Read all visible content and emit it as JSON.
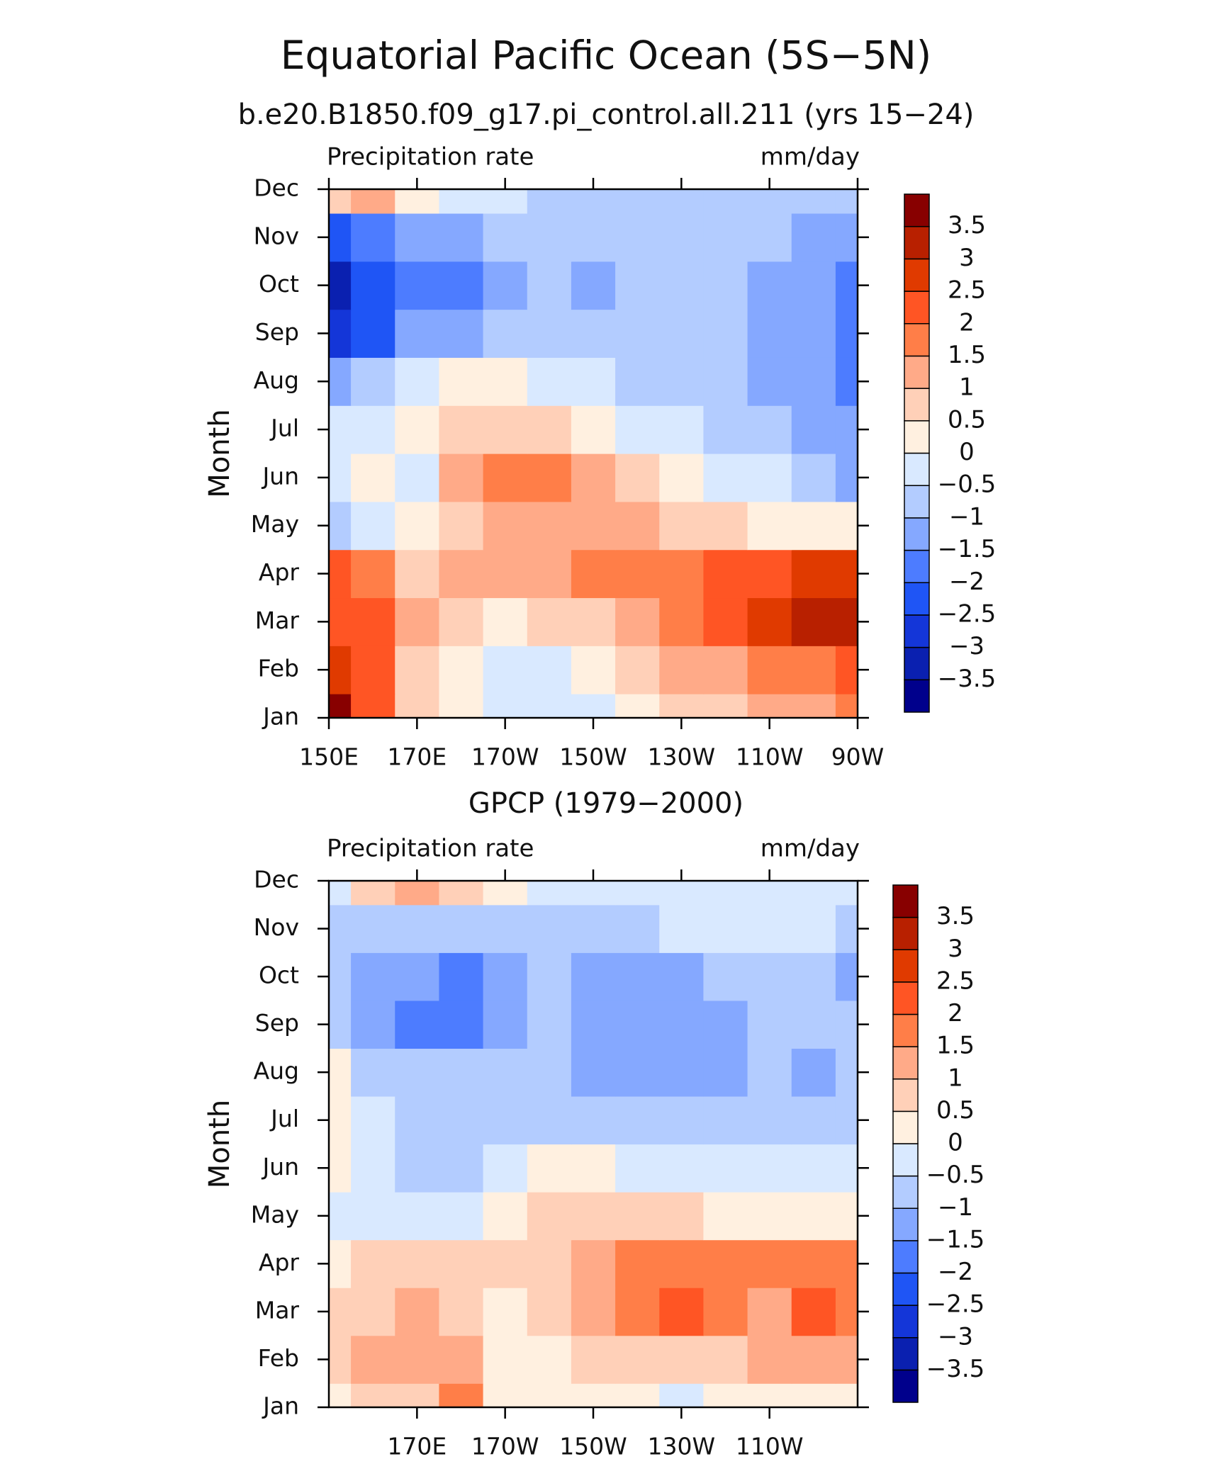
{
  "chart_data": [
    {
      "type": "contour",
      "title": "Equatorial Pacific Ocean (5S−5N)",
      "subtitle": "b.e20.B1850.f09_g17.pi_control.all.211 (yrs 15−24)",
      "left_label": "Precipitation rate",
      "right_label": "mm/day",
      "ylabel": "Month",
      "x": [
        150,
        160,
        170,
        180,
        190,
        200,
        210,
        220,
        230,
        240,
        250,
        260,
        270
      ],
      "y": [
        "Jan",
        "Feb",
        "Mar",
        "Apr",
        "May",
        "Jun",
        "Jul",
        "Aug",
        "Sep",
        "Oct",
        "Nov",
        "Dec"
      ],
      "xlim": [
        150,
        270
      ],
      "xticks": [
        {
          "value": 150,
          "label": "150E"
        },
        {
          "value": 170,
          "label": "170E"
        },
        {
          "value": 190,
          "label": "170W"
        },
        {
          "value": 210,
          "label": "150W"
        },
        {
          "value": 230,
          "label": "130W"
        },
        {
          "value": 250,
          "label": "110W"
        },
        {
          "value": 270,
          "label": "90W"
        }
      ],
      "z": [
        [
          3.5,
          2,
          0.5,
          0,
          -0.3,
          -0.3,
          -0.2,
          0.2,
          0.5,
          0.8,
          1,
          1.2,
          1.5
        ],
        [
          2.5,
          2,
          0.8,
          0.3,
          -0.2,
          -0.3,
          0.2,
          0.6,
          1,
          1.3,
          1.6,
          1.8,
          2.2
        ],
        [
          2.2,
          2.3,
          1,
          0.7,
          0.3,
          0.5,
          0.8,
          1.2,
          1.6,
          2.2,
          2.7,
          3,
          3.3
        ],
        [
          2,
          1.5,
          0.8,
          1,
          1,
          1.2,
          1.7,
          1.8,
          1.8,
          2,
          2.2,
          2.5,
          2.6
        ],
        [
          -0.7,
          -0.3,
          0,
          0.8,
          1,
          1.2,
          1.1,
          1,
          0.8,
          0.6,
          0.4,
          0.3,
          0.2
        ],
        [
          -0.3,
          0.2,
          -0.2,
          1,
          1.6,
          1.7,
          1.3,
          0.8,
          0.3,
          -0.2,
          -0.5,
          -0.8,
          -1.2
        ],
        [
          -0.3,
          -0.2,
          0.3,
          0.7,
          0.8,
          0.8,
          0.4,
          -0.1,
          -0.4,
          -0.6,
          -0.8,
          -1.1,
          -1.3
        ],
        [
          -1.5,
          -1,
          -0.5,
          0,
          0,
          -0.2,
          -0.5,
          -0.8,
          -1,
          -1,
          -1.1,
          -1.2,
          -1.6
        ],
        [
          -2.8,
          -2.3,
          -1.5,
          -1.1,
          -0.9,
          -0.8,
          -0.9,
          -0.9,
          -0.9,
          -1,
          -1.2,
          -1.3,
          -2
        ],
        [
          -3.3,
          -2.5,
          -2,
          -1.6,
          -1.2,
          -1,
          -1.1,
          -0.9,
          -0.9,
          -0.9,
          -1.2,
          -1.3,
          -2
        ],
        [
          -2.3,
          -2,
          -1.3,
          -1.1,
          -1,
          -0.8,
          -0.7,
          -0.7,
          -0.7,
          -0.7,
          -0.8,
          -1.2,
          -1.4
        ],
        [
          0.5,
          1,
          0.3,
          -0.3,
          -0.5,
          -0.6,
          -0.6,
          -0.6,
          -0.6,
          -0.6,
          -0.6,
          -0.6,
          -0.6
        ]
      ],
      "levels": [
        {
          "value": -3.5,
          "label": "−3.5"
        },
        {
          "value": -3,
          "label": "−3"
        },
        {
          "value": -2.5,
          "label": "−2.5"
        },
        {
          "value": -2,
          "label": "−2"
        },
        {
          "value": -1.5,
          "label": "−1.5"
        },
        {
          "value": -1,
          "label": "−1"
        },
        {
          "value": -0.5,
          "label": "−0.5"
        },
        0,
        0.5,
        1,
        1.5,
        2,
        2.5,
        3,
        3.5
      ],
      "colors": [
        "#00008c",
        "#0a20b0",
        "#1436d8",
        "#1f55f5",
        "#4d7cff",
        "#85a8ff",
        "#b3ccff",
        "#d9e9ff",
        "#fff0e0",
        "#ffd0b8",
        "#ffaa88",
        "#ff7e48",
        "#ff5524",
        "#e03a00",
        "#b82000",
        "#880000"
      ]
    },
    {
      "type": "contour",
      "subtitle": "GPCP (1979−2000)",
      "left_label": "Precipitation rate",
      "right_label": "mm/day",
      "ylabel": "Month",
      "x": [
        150,
        160,
        170,
        180,
        190,
        200,
        210,
        220,
        230,
        240,
        250,
        260,
        270
      ],
      "y": [
        "Jan",
        "Feb",
        "Mar",
        "Apr",
        "May",
        "Jun",
        "Jul",
        "Aug",
        "Sep",
        "Oct",
        "Nov",
        "Dec"
      ],
      "xlim": [
        150,
        270
      ],
      "xticks": [
        {
          "value": 170,
          "label": "170E"
        },
        {
          "value": 190,
          "label": "170W"
        },
        {
          "value": 210,
          "label": "150W"
        },
        {
          "value": 230,
          "label": "130W"
        },
        {
          "value": 250,
          "label": "110W"
        }
      ],
      "z": [
        [
          0.3,
          0.6,
          0.9,
          1.5,
          0.2,
          0.1,
          0.1,
          0.1,
          -0.1,
          0,
          0,
          0.2,
          0.4
        ],
        [
          0.8,
          1,
          1.2,
          1,
          0.3,
          0.3,
          0.6,
          0.8,
          0.9,
          0.9,
          1,
          1,
          1.2
        ],
        [
          0.7,
          0.8,
          1.2,
          0.9,
          0.3,
          0.9,
          1.2,
          1.6,
          2.1,
          1.7,
          1.3,
          2,
          1.5
        ],
        [
          0.4,
          0.7,
          0.8,
          0.5,
          0.5,
          0.7,
          1.3,
          1.6,
          1.9,
          1.8,
          1.6,
          1.8,
          1.5
        ],
        [
          -0.2,
          -0.3,
          -0.4,
          -0.3,
          0.3,
          0.6,
          0.6,
          0.6,
          0.5,
          0.3,
          0.2,
          0.1,
          0
        ],
        [
          0.3,
          -0.4,
          -0.6,
          -0.7,
          -0.5,
          0,
          0,
          -0.1,
          -0.3,
          -0.4,
          -0.5,
          -0.5,
          -0.5
        ],
        [
          0.4,
          -0.4,
          -0.7,
          -0.8,
          -0.8,
          -0.7,
          -0.7,
          -0.6,
          -0.7,
          -0.8,
          -0.8,
          -1,
          -0.9
        ],
        [
          0.2,
          -0.6,
          -0.8,
          -0.8,
          -0.9,
          -0.8,
          -1.1,
          -1.1,
          -1.1,
          -1.1,
          -0.8,
          -1.1,
          -0.9
        ],
        [
          -1,
          -1.2,
          -1.6,
          -1.6,
          -1.2,
          -1,
          -1.2,
          -1.2,
          -1.2,
          -1.1,
          -0.8,
          -1,
          -1
        ],
        [
          -1,
          -1.2,
          -1.3,
          -1.7,
          -1.2,
          -0.9,
          -1.1,
          -1.1,
          -1.1,
          -0.9,
          -0.8,
          -0.9,
          -1.1
        ],
        [
          -0.7,
          -0.8,
          -0.8,
          -0.8,
          -0.8,
          -0.7,
          -0.6,
          -0.6,
          -0.5,
          -0.4,
          -0.4,
          -0.5,
          -0.6
        ],
        [
          -0.2,
          0.5,
          1.2,
          0.5,
          0.3,
          -0.2,
          -0.2,
          -0.3,
          -0.3,
          -0.3,
          -0.3,
          -0.3,
          -0.3
        ]
      ],
      "levels": [
        {
          "value": -3.5,
          "label": "−3.5"
        },
        {
          "value": -3,
          "label": "−3"
        },
        {
          "value": -2.5,
          "label": "−2.5"
        },
        {
          "value": -2,
          "label": "−2"
        },
        {
          "value": -1.5,
          "label": "−1.5"
        },
        {
          "value": -1,
          "label": "−1"
        },
        {
          "value": -0.5,
          "label": "−0.5"
        },
        0,
        0.5,
        1,
        1.5,
        2,
        2.5,
        3,
        3.5
      ],
      "colors": [
        "#00008c",
        "#0a20b0",
        "#1436d8",
        "#1f55f5",
        "#4d7cff",
        "#85a8ff",
        "#b3ccff",
        "#d9e9ff",
        "#fff0e0",
        "#ffd0b8",
        "#ffaa88",
        "#ff7e48",
        "#ff5524",
        "#e03a00",
        "#b82000",
        "#880000"
      ]
    }
  ]
}
